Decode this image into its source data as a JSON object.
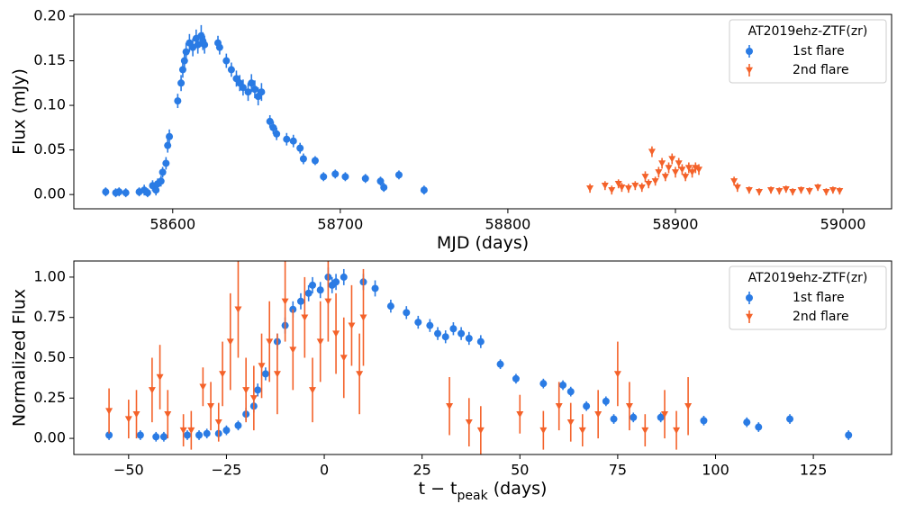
{
  "chart_data": [
    {
      "type": "scatter",
      "ylabel": "Flux (mJy)",
      "xlabel": [
        "MJD (days)"
      ],
      "xlim": [
        58541,
        59029
      ],
      "ylim": [
        -0.016,
        0.202
      ],
      "xticks": [
        58600,
        58700,
        58800,
        58900,
        59000
      ],
      "yticks": [
        {
          "value": 0,
          "label": "0.00"
        },
        {
          "value": 0.05,
          "label": "0.05"
        },
        {
          "value": 0.1,
          "label": "0.10"
        },
        {
          "value": 0.15,
          "label": "0.15"
        },
        {
          "value": 0.2,
          "label": "0.20"
        }
      ],
      "legend_title": "AT2019ehz-ZTF(zr)",
      "legend": "upper right",
      "series": [
        {
          "name": "1st flare",
          "color": "#2a7be4",
          "marker": "circle",
          "x": [
            58560,
            58566,
            58568,
            58572,
            58580,
            58583,
            58585,
            58588,
            58590,
            58591,
            58593,
            58594,
            58596,
            58597,
            58598,
            58603,
            58605,
            58606,
            58607,
            58608,
            58610,
            58612,
            58614,
            58615,
            58617,
            58618,
            58619,
            58627,
            58628,
            58632,
            58635,
            58638,
            58640,
            58642,
            58645,
            58647,
            58649,
            58651,
            58653,
            58658,
            58660,
            58662,
            58668,
            58672,
            58676,
            58678,
            58685,
            58690,
            58697,
            58703,
            58715,
            58724,
            58726,
            58735,
            58750
          ],
          "values": [
            0.003,
            0.002,
            0.003,
            0.002,
            0.003,
            0.005,
            0.002,
            0.01,
            0.005,
            0.012,
            0.015,
            0.025,
            0.035,
            0.055,
            0.065,
            0.105,
            0.125,
            0.14,
            0.15,
            0.16,
            0.17,
            0.165,
            0.175,
            0.168,
            0.178,
            0.172,
            0.168,
            0.17,
            0.165,
            0.15,
            0.14,
            0.13,
            0.125,
            0.12,
            0.115,
            0.125,
            0.118,
            0.11,
            0.115,
            0.082,
            0.075,
            0.068,
            0.062,
            0.06,
            0.052,
            0.04,
            0.038,
            0.02,
            0.023,
            0.02,
            0.018,
            0.015,
            0.008,
            0.022,
            0.005
          ],
          "errors": [
            0.005,
            0.005,
            0.005,
            0.005,
            0.005,
            0.006,
            0.005,
            0.006,
            0.006,
            0.006,
            0.006,
            0.006,
            0.007,
            0.008,
            0.008,
            0.008,
            0.009,
            0.009,
            0.009,
            0.01,
            0.01,
            0.01,
            0.01,
            0.01,
            0.012,
            0.01,
            0.01,
            0.008,
            0.008,
            0.008,
            0.008,
            0.009,
            0.009,
            0.009,
            0.01,
            0.01,
            0.01,
            0.01,
            0.01,
            0.007,
            0.007,
            0.007,
            0.007,
            0.007,
            0.006,
            0.006,
            0.005,
            0.005,
            0.005,
            0.005,
            0.005,
            0.005,
            0.005,
            0.005,
            0.005
          ]
        },
        {
          "name": "2nd flare",
          "color": "#f4622a",
          "marker": "triangle-down",
          "x": [
            58849,
            58858,
            58862,
            58866,
            58868,
            58872,
            58876,
            58880,
            58882,
            58884,
            58886,
            58888,
            58890,
            58892,
            58894,
            58896,
            58898,
            58900,
            58902,
            58904,
            58906,
            58908,
            58910,
            58912,
            58914,
            58935,
            58937,
            58944,
            58950,
            58957,
            58962,
            58966,
            58970,
            58975,
            58980,
            58985,
            58990,
            58994,
            58998
          ],
          "values": [
            0.007,
            0.01,
            0.005,
            0.012,
            0.008,
            0.007,
            0.01,
            0.008,
            0.02,
            0.012,
            0.048,
            0.015,
            0.025,
            0.035,
            0.02,
            0.03,
            0.04,
            0.025,
            0.035,
            0.028,
            0.02,
            0.03,
            0.025,
            0.03,
            0.028,
            0.015,
            0.008,
            0.005,
            0.003,
            0.005,
            0.004,
            0.006,
            0.003,
            0.005,
            0.004,
            0.008,
            0.003,
            0.005,
            0.004
          ],
          "errors": [
            0.005,
            0.005,
            0.005,
            0.005,
            0.005,
            0.005,
            0.005,
            0.005,
            0.006,
            0.005,
            0.006,
            0.005,
            0.006,
            0.006,
            0.005,
            0.006,
            0.006,
            0.006,
            0.006,
            0.006,
            0.005,
            0.006,
            0.006,
            0.006,
            0.006,
            0.005,
            0.005,
            0.004,
            0.004,
            0.004,
            0.004,
            0.004,
            0.004,
            0.004,
            0.004,
            0.004,
            0.004,
            0.004,
            0.004
          ]
        }
      ]
    },
    {
      "type": "scatter",
      "ylabel": "Normalized Flux",
      "xlabel": [
        "t − t",
        "peak",
        " (days)"
      ],
      "xlim": [
        -64,
        145
      ],
      "ylim": [
        -0.1,
        1.1
      ],
      "xticks": [
        {
          "value": -50,
          "label": "−50"
        },
        {
          "value": -25,
          "label": "−25"
        },
        0,
        25,
        50,
        75,
        100,
        125
      ],
      "yticks": [
        {
          "value": 0,
          "label": "0.00"
        },
        {
          "value": 0.25,
          "label": "0.25"
        },
        {
          "value": 0.5,
          "label": "0.50"
        },
        {
          "value": 0.75,
          "label": "0.75"
        },
        {
          "value": 1,
          "label": "1.00"
        }
      ],
      "legend_title": "AT2019ehz-ZTF(zr)",
      "legend": "upper right",
      "series": [
        {
          "name": "1st flare",
          "color": "#2a7be4",
          "marker": "circle",
          "x": [
            -55,
            -47,
            -43,
            -41,
            -35,
            -32,
            -30,
            -27,
            -25,
            -22,
            -20,
            -18,
            -17,
            -15,
            -12,
            -10,
            -8,
            -6,
            -4,
            -3,
            -1,
            1,
            2,
            3,
            5,
            10,
            13,
            17,
            21,
            24,
            27,
            29,
            31,
            33,
            35,
            37,
            40,
            45,
            49,
            56,
            61,
            63,
            67,
            72,
            74,
            79,
            86,
            97,
            108,
            111,
            119,
            134
          ],
          "values": [
            0.02,
            0.02,
            0.01,
            0.01,
            0.02,
            0.02,
            0.03,
            0.03,
            0.05,
            0.08,
            0.15,
            0.2,
            0.3,
            0.4,
            0.6,
            0.7,
            0.8,
            0.85,
            0.9,
            0.95,
            0.92,
            1.0,
            0.95,
            0.97,
            1.0,
            0.97,
            0.93,
            0.82,
            0.78,
            0.72,
            0.7,
            0.65,
            0.63,
            0.68,
            0.65,
            0.62,
            0.6,
            0.46,
            0.37,
            0.34,
            0.33,
            0.29,
            0.2,
            0.23,
            0.12,
            0.13,
            0.13,
            0.11,
            0.1,
            0.07,
            0.12,
            0.02
          ],
          "errors": [
            0.03,
            0.03,
            0.03,
            0.03,
            0.03,
            0.03,
            0.03,
            0.03,
            0.03,
            0.03,
            0.04,
            0.04,
            0.04,
            0.04,
            0.05,
            0.05,
            0.05,
            0.05,
            0.05,
            0.05,
            0.05,
            0.06,
            0.05,
            0.05,
            0.05,
            0.05,
            0.05,
            0.04,
            0.04,
            0.04,
            0.04,
            0.04,
            0.04,
            0.04,
            0.04,
            0.04,
            0.04,
            0.03,
            0.03,
            0.03,
            0.03,
            0.03,
            0.03,
            0.03,
            0.03,
            0.03,
            0.03,
            0.03,
            0.03,
            0.03,
            0.03,
            0.03
          ]
        },
        {
          "name": "2nd flare",
          "color": "#f4622a",
          "marker": "triangle-down",
          "x": [
            -55,
            -50,
            -48,
            -44,
            -42,
            -40,
            -36,
            -34,
            -31,
            -29,
            -27,
            -26,
            -24,
            -22,
            -20,
            -18,
            -16,
            -14,
            -12,
            -10,
            -8,
            -5,
            -3,
            -1,
            1,
            3,
            5,
            7,
            9,
            10,
            32,
            37,
            40,
            50,
            56,
            60,
            63,
            66,
            70,
            75,
            78,
            82,
            87,
            90,
            93
          ],
          "values": [
            0.17,
            0.12,
            0.15,
            0.3,
            0.38,
            0.15,
            0.05,
            0.05,
            0.32,
            0.2,
            0.1,
            0.4,
            0.6,
            0.8,
            0.3,
            0.25,
            0.45,
            0.6,
            0.4,
            0.85,
            0.55,
            0.75,
            0.3,
            0.6,
            0.85,
            0.65,
            0.5,
            0.7,
            0.4,
            0.75,
            0.2,
            0.1,
            0.05,
            0.15,
            0.05,
            0.2,
            0.1,
            0.05,
            0.15,
            0.4,
            0.2,
            0.05,
            0.15,
            0.05,
            0.2
          ],
          "errors": [
            0.14,
            0.12,
            0.15,
            0.2,
            0.2,
            0.15,
            0.1,
            0.12,
            0.12,
            0.15,
            0.12,
            0.2,
            0.3,
            0.3,
            0.2,
            0.2,
            0.2,
            0.25,
            0.25,
            0.25,
            0.25,
            0.25,
            0.2,
            0.25,
            0.25,
            0.25,
            0.25,
            0.25,
            0.25,
            0.3,
            0.18,
            0.15,
            0.15,
            0.12,
            0.12,
            0.15,
            0.12,
            0.1,
            0.15,
            0.2,
            0.15,
            0.1,
            0.15,
            0.12,
            0.18
          ]
        }
      ]
    }
  ]
}
